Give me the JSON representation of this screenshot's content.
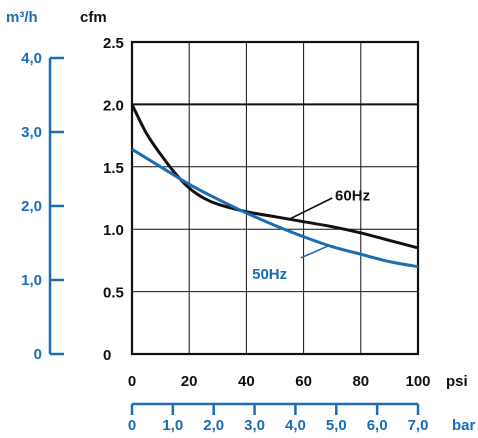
{
  "chart_data": {
    "type": "line",
    "title": "",
    "primary_y": {
      "unit": "cfm",
      "range": [
        0,
        2.5
      ],
      "ticks": [
        "0",
        "0.5",
        "1.0",
        "1.5",
        "2.0",
        "2.5"
      ]
    },
    "secondary_y": {
      "unit": "m³/h",
      "ticks": [
        "0",
        "1,0",
        "2,0",
        "3,0",
        "4,0"
      ]
    },
    "primary_x": {
      "unit": "psi",
      "range": [
        0,
        100
      ],
      "ticks": [
        "0",
        "20",
        "40",
        "60",
        "80",
        "100"
      ]
    },
    "secondary_x": {
      "unit": "bar",
      "ticks": [
        "0",
        "1,0",
        "2,0",
        "3,0",
        "4,0",
        "5,0",
        "6,0",
        "7,0"
      ]
    },
    "grid": true,
    "series": [
      {
        "name": "60Hz",
        "color": "#111111",
        "points": [
          [
            0,
            2.0
          ],
          [
            5,
            1.77
          ],
          [
            10,
            1.6
          ],
          [
            15,
            1.45
          ],
          [
            20,
            1.33
          ],
          [
            25,
            1.25
          ],
          [
            30,
            1.2
          ],
          [
            40,
            1.14
          ],
          [
            50,
            1.1
          ],
          [
            60,
            1.06
          ],
          [
            70,
            1.02
          ],
          [
            80,
            0.97
          ],
          [
            90,
            0.91
          ],
          [
            100,
            0.85
          ]
        ]
      },
      {
        "name": "50Hz",
        "color": "#1a6cb5",
        "points": [
          [
            0,
            1.64
          ],
          [
            10,
            1.5
          ],
          [
            20,
            1.36
          ],
          [
            30,
            1.24
          ],
          [
            40,
            1.13
          ],
          [
            50,
            1.03
          ],
          [
            60,
            0.94
          ],
          [
            70,
            0.86
          ],
          [
            80,
            0.8
          ],
          [
            90,
            0.74
          ],
          [
            100,
            0.7
          ]
        ]
      }
    ]
  }
}
